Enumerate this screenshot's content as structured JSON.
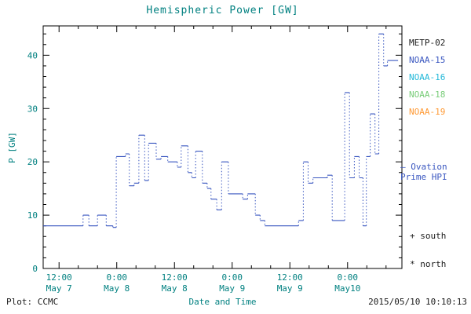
{
  "title": "Hemispheric Power [GW]",
  "colors": {
    "axis_text": "#008080",
    "frame": "#000000",
    "hpi_line": "#3a57c0",
    "footer_text": "#1a1a1a"
  },
  "legend": [
    {
      "label": "METP-02",
      "color": "#1a1a1a"
    },
    {
      "label": "NOAA-15",
      "color": "#3a57c0"
    },
    {
      "label": "NOAA-16",
      "color": "#22b8d8"
    },
    {
      "label": "NOAA-18",
      "color": "#77cc77"
    },
    {
      "label": "NOAA-19",
      "color": "#ff9933"
    }
  ],
  "annotations": {
    "model_line1": "— Ovation",
    "model_line2": "Prime HPI",
    "model_color": "#3a57c0",
    "south": "+ south",
    "north": "* north",
    "plot_credit": "Plot: CCMC",
    "timestamp": "2015/05/10 10:10:13"
  },
  "chart_data": {
    "type": "line",
    "step": true,
    "title": "Hemispheric Power [GW]",
    "xlabel": "Date and Time",
    "ylabel": "P [GW]",
    "ylim": [
      0,
      45.5
    ],
    "xlim_hours": [
      8.7,
      83.3
    ],
    "grid": false,
    "legend_position": "right",
    "y_ticks": [
      0,
      10,
      20,
      30,
      40
    ],
    "x_ticks": [
      {
        "t": 12,
        "time": "12:00",
        "date": "May 7"
      },
      {
        "t": 24,
        "time": "0:00",
        "date": "May 8"
      },
      {
        "t": 36,
        "time": "12:00",
        "date": "May 8"
      },
      {
        "t": 48,
        "time": "0:00",
        "date": "May 9"
      },
      {
        "t": 60,
        "time": "12:00",
        "date": "May 9"
      },
      {
        "t": 72,
        "time": "0:00",
        "date": "May10"
      }
    ],
    "series": [
      {
        "name": "Ovation Prime HPI",
        "color": "#3a57c0",
        "units": "GW",
        "end_t": 82.5,
        "steps": [
          [
            8.7,
            8
          ],
          [
            17.0,
            10
          ],
          [
            18.2,
            8
          ],
          [
            20.0,
            10
          ],
          [
            21.8,
            8
          ],
          [
            23.2,
            7.7
          ],
          [
            23.9,
            21
          ],
          [
            25.8,
            21.5
          ],
          [
            26.6,
            15.5
          ],
          [
            27.6,
            16
          ],
          [
            28.6,
            25
          ],
          [
            29.8,
            16.5
          ],
          [
            30.6,
            23.5
          ],
          [
            32.2,
            20.5
          ],
          [
            33.2,
            21
          ],
          [
            34.6,
            20
          ],
          [
            36.6,
            19
          ],
          [
            37.4,
            23
          ],
          [
            38.8,
            18
          ],
          [
            39.6,
            17
          ],
          [
            40.4,
            22
          ],
          [
            41.8,
            16
          ],
          [
            42.8,
            15
          ],
          [
            43.6,
            13
          ],
          [
            44.8,
            11
          ],
          [
            45.8,
            20
          ],
          [
            47.2,
            14
          ],
          [
            50.2,
            13
          ],
          [
            51.2,
            14
          ],
          [
            52.8,
            10
          ],
          [
            53.8,
            9
          ],
          [
            54.8,
            8
          ],
          [
            61.8,
            9
          ],
          [
            62.8,
            20
          ],
          [
            63.8,
            16
          ],
          [
            64.8,
            17
          ],
          [
            67.8,
            17.5
          ],
          [
            68.8,
            9
          ],
          [
            71.4,
            33
          ],
          [
            72.4,
            17
          ],
          [
            73.4,
            21
          ],
          [
            74.4,
            17
          ],
          [
            75.2,
            8
          ],
          [
            75.9,
            21
          ],
          [
            76.7,
            29
          ],
          [
            77.7,
            21.5
          ],
          [
            78.5,
            44
          ],
          [
            79.5,
            38
          ],
          [
            80.3,
            39
          ]
        ]
      }
    ]
  }
}
